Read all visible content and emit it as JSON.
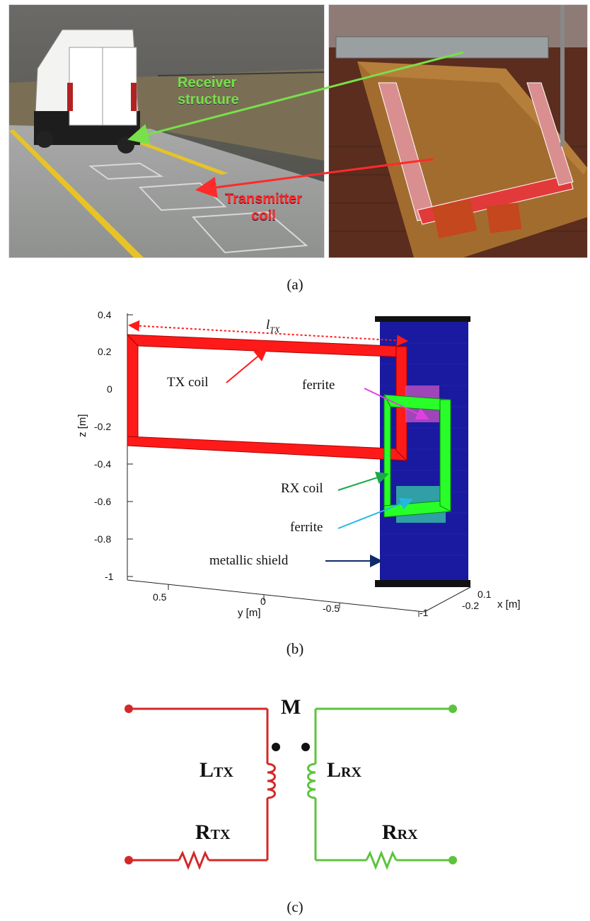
{
  "panel_a": {
    "caption": "(a)",
    "left_label": "Receiver\nstructure",
    "right_label": "Transmitter\ncoil",
    "colors": {
      "green": "#78e04a",
      "red": "#ff2a2a"
    }
  },
  "panel_b": {
    "caption": "(b)",
    "z_axis_label": "z [m]",
    "y_axis_label": "y [m]",
    "x_axis_label": "x [m]",
    "z_ticks": [
      "0.4",
      "0.2",
      "0",
      "-0.2",
      "-0.4",
      "-0.6",
      "-0.8",
      "-1"
    ],
    "y_ticks": [
      "0.5",
      "0",
      "-0.5",
      "-1"
    ],
    "x_ticks": [
      "0.1",
      "-0.2"
    ],
    "ltx_label": "l",
    "ltx_sub": "TX",
    "tx_coil": "TX coil",
    "ferrite_top": "ferrite",
    "rx_coil": "RX coil",
    "ferrite_bottom": "ferrite",
    "shield": "metallic shield",
    "colors": {
      "tx": "#ff1a1a",
      "rx": "#28ff28",
      "shield": "#1a1aa0",
      "ferrite_top": "#c050c0",
      "ferrite_bottom": "#36c0a8"
    }
  },
  "panel_c": {
    "caption": "(c)",
    "mutual": "M",
    "ltx_main": "L",
    "ltx_sub": "TX",
    "lrx_main": "L",
    "lrx_sub": "RX",
    "rtx_main": "R",
    "rtx_sub": "TX",
    "rrx_main": "R",
    "rrx_sub": "RX",
    "colors": {
      "tx": "#d42828",
      "rx": "#5cc43c"
    }
  }
}
